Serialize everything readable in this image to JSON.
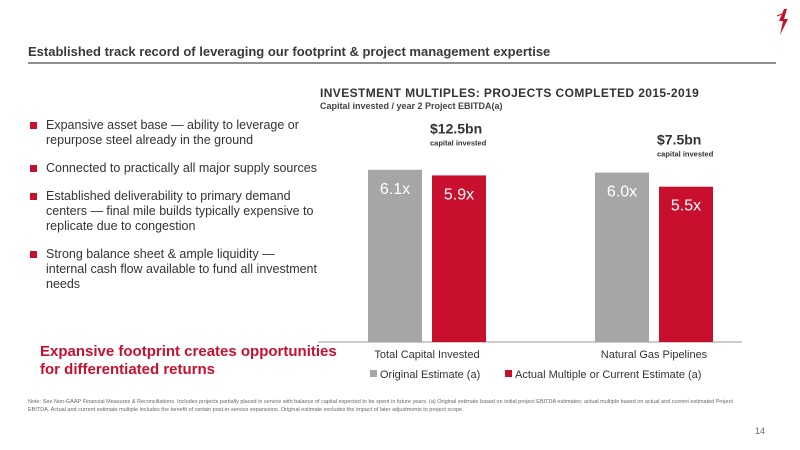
{
  "header": {
    "title": "Established track record of leveraging our footprint & project management expertise"
  },
  "bullets": [
    "Expansive asset base — ability to leverage or repurpose steel already in the ground",
    "Connected to practically all major supply sources",
    "Established deliverability to primary demand centers — final mile builds typically expensive to replicate due to congestion",
    "Strong balance sheet & ample liquidity — internal cash flow available to fund all investment needs"
  ],
  "callout": "Expansive footprint creates opportunities for differentiated returns",
  "colors": {
    "accent": "#c8102e",
    "original": "#a6a6a6",
    "actual": "#c8102e"
  },
  "chart_data": {
    "type": "bar",
    "title": "INVESTMENT MULTIPLES: PROJECTS COMPLETED 2015-2019",
    "subtitle": "Capital invested / year 2 Project EBITDA(a)",
    "categories": [
      "Total Capital Invested",
      "Natural Gas Pipelines"
    ],
    "series": [
      {
        "name": "Original Estimate (a)",
        "values": [
          6.1,
          6.0
        ],
        "labels": [
          "6.1x",
          "6.0x"
        ]
      },
      {
        "name": "Actual Multiple or Current Estimate (a)",
        "values": [
          5.9,
          5.5
        ],
        "labels": [
          "5.9x",
          "5.5x"
        ]
      }
    ],
    "annotations": [
      {
        "value": "$12.5bn",
        "note": "capital invested"
      },
      {
        "value": "$7.5bn",
        "note": "capital invested"
      }
    ],
    "ylim": [
      0,
      6.8
    ],
    "legend_position": "bottom",
    "grid": false
  },
  "footnote": "Note: See Non-GAAP Financial Measures & Reconciliations. Includes projects partially placed in service with balance of capital expected to be spent in future years. (a) Original estimate based on initial project EBITDA estimates; actual multiple based on actual and current estimated Project EBITDA. Actual and current estimate multiple includes the benefit of certain post-in-service expansions. Original estimate excludes the impact of later adjustments to project scope.",
  "page_number": "14"
}
